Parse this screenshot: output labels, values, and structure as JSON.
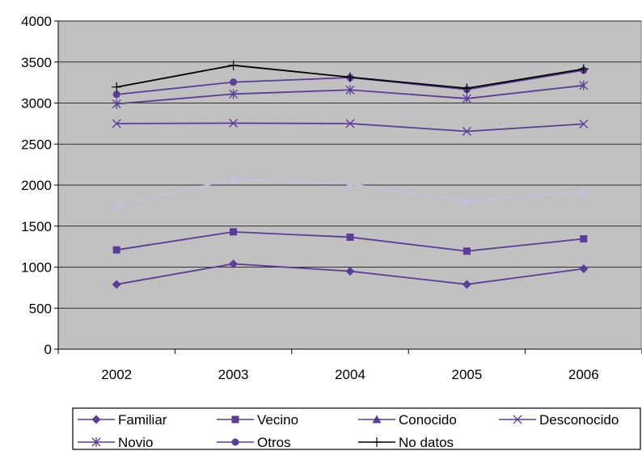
{
  "chart_data": {
    "type": "line",
    "categories": [
      "2002",
      "2003",
      "2004",
      "2005",
      "2006"
    ],
    "ylim": [
      0,
      4000
    ],
    "yticks": [
      "0",
      "500",
      "1000",
      "1500",
      "2000",
      "2500",
      "3000",
      "3500",
      "4000"
    ],
    "grid": "horizontal",
    "plot_background": "#c0c0c0",
    "legend_position": "bottom",
    "series": [
      {
        "name": "Familiar",
        "values": [
          790,
          1040,
          950,
          790,
          980
        ],
        "color": "#5b3c96",
        "marker": "diamond"
      },
      {
        "name": "Vecino",
        "values": [
          1210,
          1430,
          1365,
          1195,
          1345
        ],
        "color": "#5b3c96",
        "marker": "square"
      },
      {
        "name": "Conocido",
        "values": [
          1745,
          2075,
          2015,
          1800,
          1920
        ],
        "color": "#c4bfdc",
        "marker": "triangle",
        "legend_color": "#5b3c96"
      },
      {
        "name": "Desconocido",
        "values": [
          2750,
          2755,
          2750,
          2655,
          2745
        ],
        "color": "#5b3c96",
        "marker": "x"
      },
      {
        "name": "Novio",
        "values": [
          2990,
          3110,
          3160,
          3055,
          3215
        ],
        "color": "#5b3c96",
        "marker": "star"
      },
      {
        "name": "Otros",
        "values": [
          3105,
          3255,
          3310,
          3165,
          3400
        ],
        "color": "#5b3c96",
        "marker": "circle"
      },
      {
        "name": "No datos",
        "values": [
          3195,
          3460,
          3315,
          3180,
          3415
        ],
        "color": "#000000",
        "marker": "plus"
      }
    ]
  }
}
